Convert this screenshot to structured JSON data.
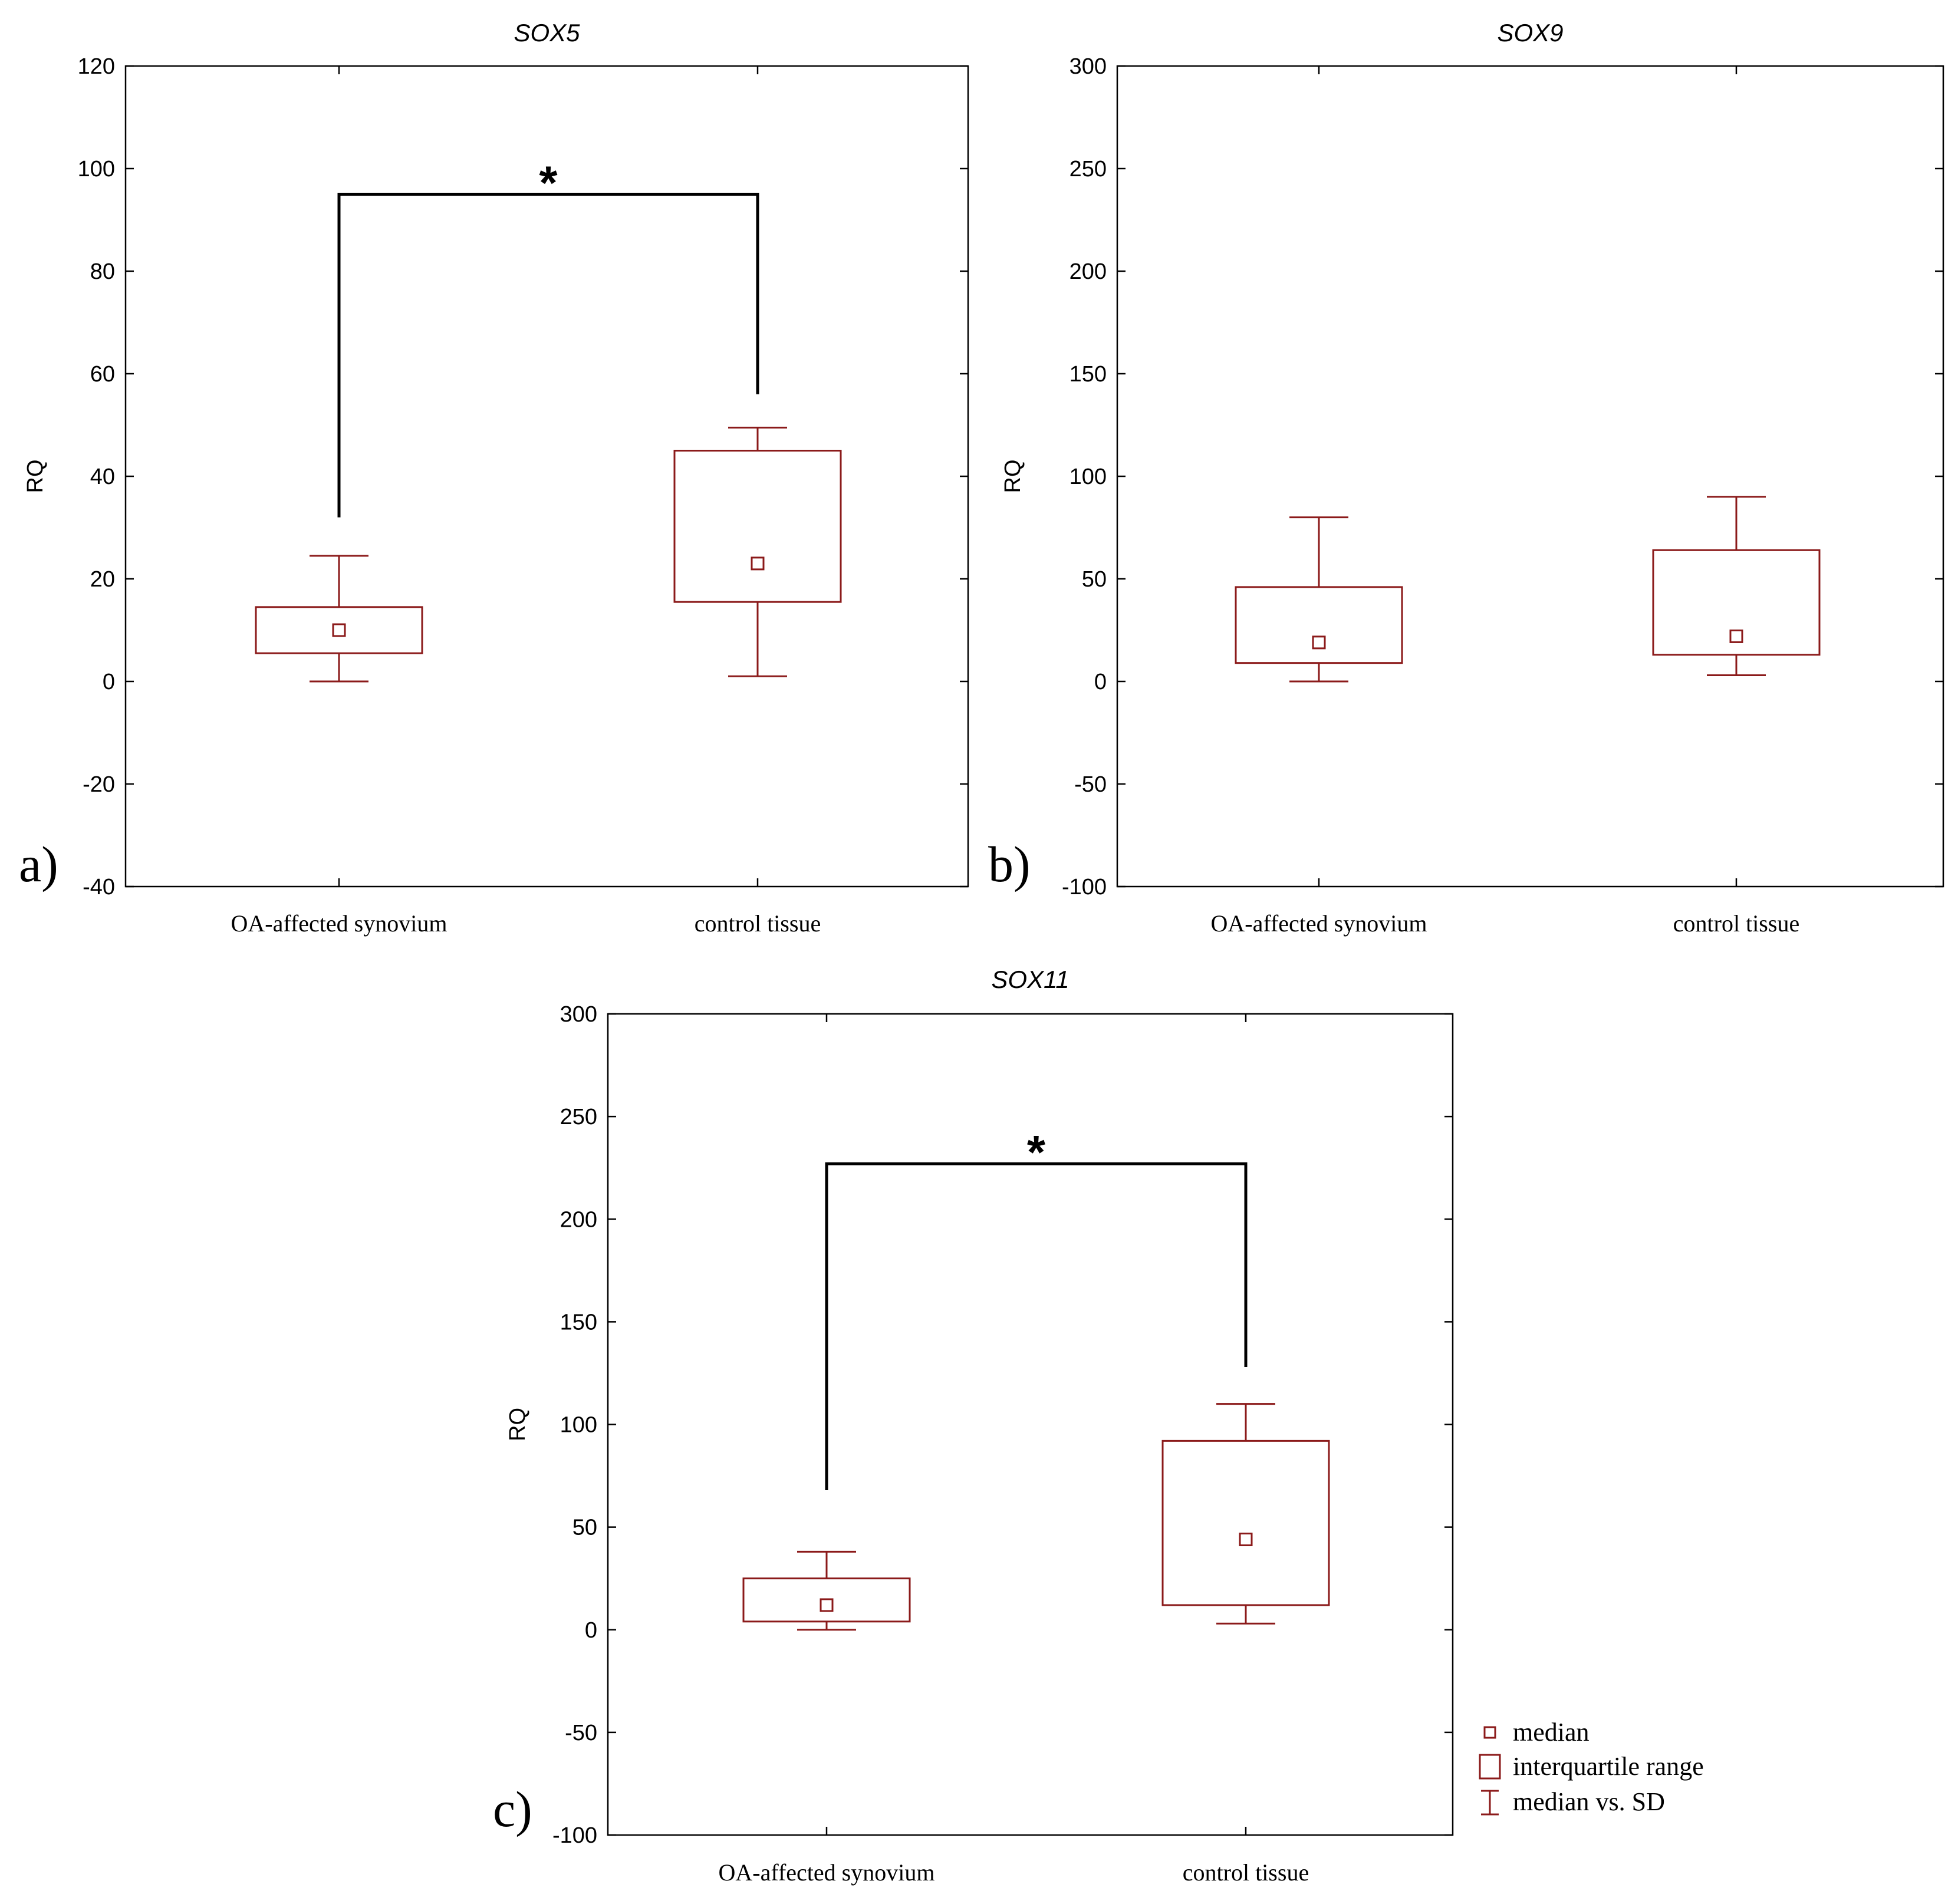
{
  "colors": {
    "box": "#8b1a1a",
    "axis": "#000000",
    "bracket": "#000000"
  },
  "legend": {
    "median": "median",
    "iqr": "interquartile range",
    "sd": "median vs. SD"
  },
  "chart_data": [
    {
      "type": "box",
      "panel_label": "a)",
      "title": "SOX5",
      "ylabel": "RQ",
      "ylim": [
        -40,
        120
      ],
      "yticks": [
        -40,
        -20,
        0,
        20,
        40,
        60,
        80,
        100,
        120
      ],
      "categories": [
        "OA-affected synovium",
        "control tissue"
      ],
      "boxes": [
        {
          "median": 10,
          "q1": 5.5,
          "q3": 14.5,
          "whisker_low": 0,
          "whisker_high": 24.5
        },
        {
          "median": 23,
          "q1": 15.5,
          "q3": 45,
          "whisker_low": 1,
          "whisker_high": 49.5
        }
      ],
      "significance": {
        "label": "*",
        "y": 95,
        "left_end": 32,
        "right_end": 56
      }
    },
    {
      "type": "box",
      "panel_label": "b)",
      "title": "SOX9",
      "ylabel": "RQ",
      "ylim": [
        -100,
        300
      ],
      "yticks": [
        -100,
        -50,
        0,
        50,
        100,
        150,
        200,
        250,
        300
      ],
      "categories": [
        "OA-affected synovium",
        "control tissue"
      ],
      "boxes": [
        {
          "median": 19,
          "q1": 9,
          "q3": 46,
          "whisker_low": 0,
          "whisker_high": 80
        },
        {
          "median": 22,
          "q1": 13,
          "q3": 64,
          "whisker_low": 3,
          "whisker_high": 90
        }
      ],
      "significance": null
    },
    {
      "type": "box",
      "panel_label": "c)",
      "title": "SOX11",
      "ylabel": "RQ",
      "ylim": [
        -100,
        300
      ],
      "yticks": [
        -100,
        -50,
        0,
        50,
        100,
        150,
        200,
        250,
        300
      ],
      "categories": [
        "OA-affected synovium",
        "control tissue"
      ],
      "boxes": [
        {
          "median": 12,
          "q1": 4,
          "q3": 25,
          "whisker_low": 0,
          "whisker_high": 38
        },
        {
          "median": 44,
          "q1": 12,
          "q3": 92,
          "whisker_low": 3,
          "whisker_high": 110
        }
      ],
      "significance": {
        "label": "*",
        "y": 227,
        "left_end": 68,
        "right_end": 128
      }
    }
  ]
}
